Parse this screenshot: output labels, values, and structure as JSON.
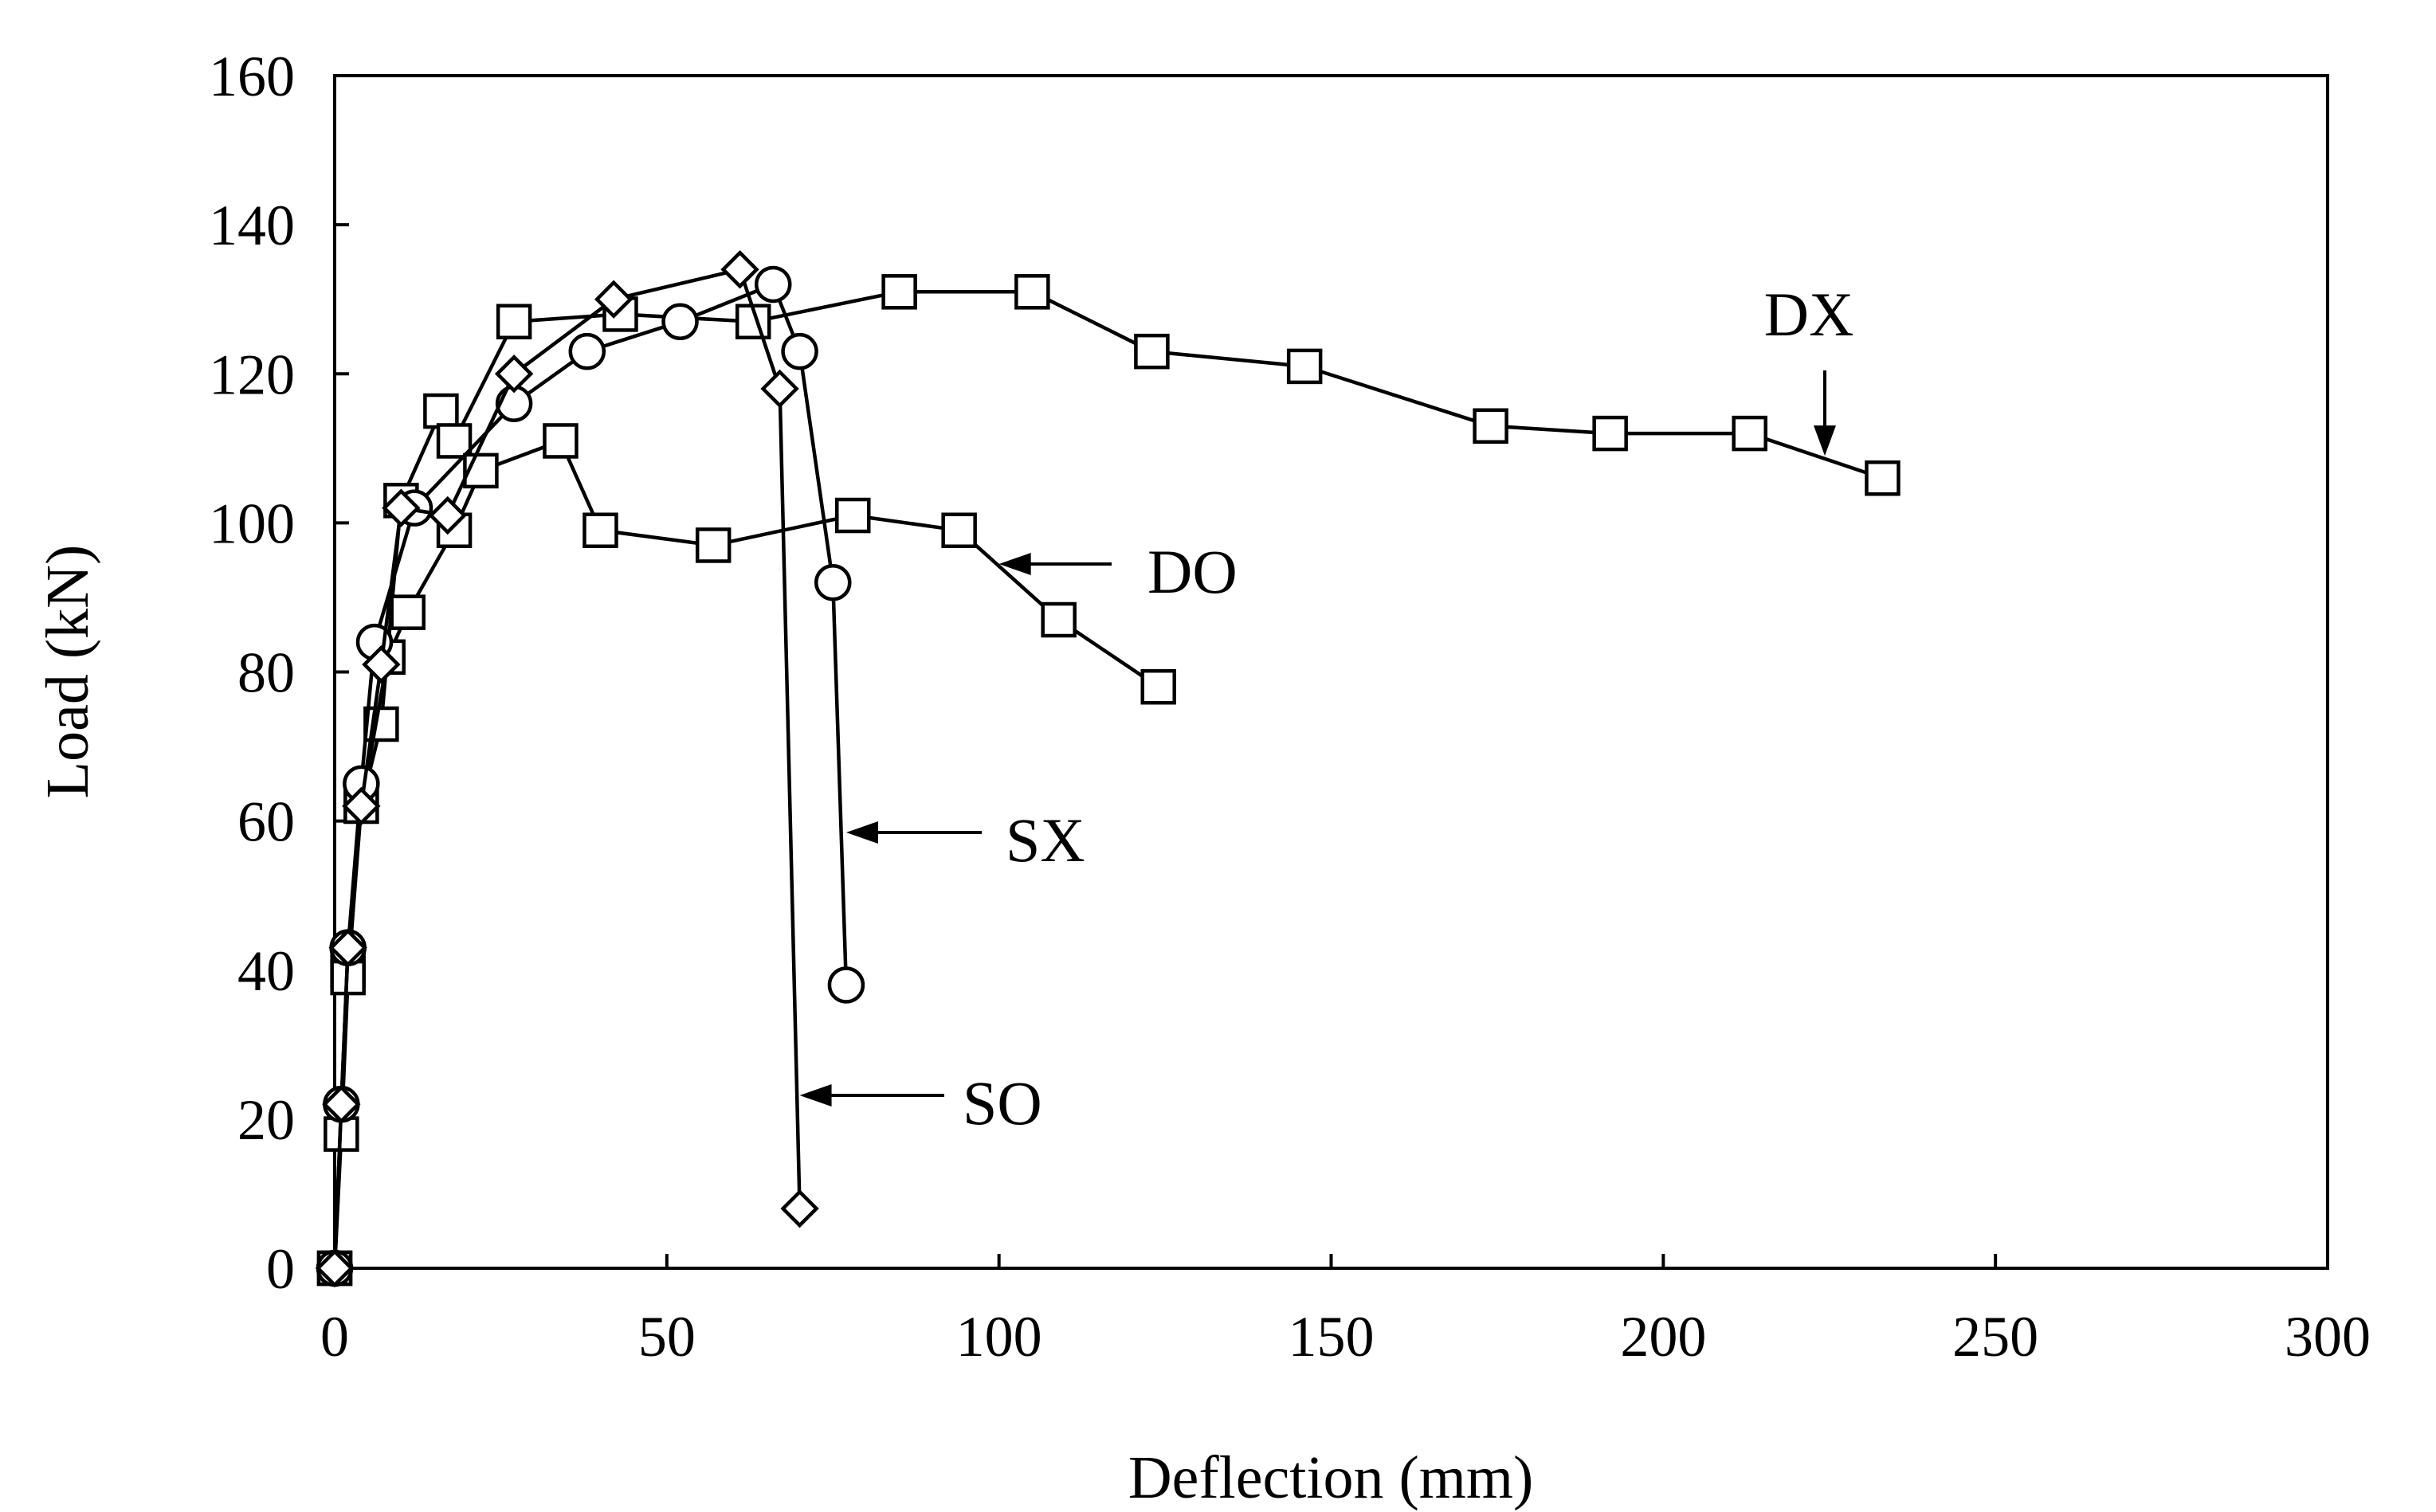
{
  "chart_data": {
    "type": "line",
    "xlabel": "Deflection (mm)",
    "ylabel": "Load (kN)",
    "xlim": [
      0,
      300
    ],
    "ylim": [
      0,
      160
    ],
    "xticks": [
      0,
      50,
      100,
      150,
      200,
      250,
      300
    ],
    "yticks": [
      0,
      20,
      40,
      60,
      80,
      100,
      120,
      140,
      160
    ],
    "grid": false,
    "series": [
      {
        "name": "DX",
        "marker": "square",
        "x": [
          0,
          2,
          4,
          7,
          10,
          16,
          18,
          27,
          43,
          63,
          85,
          105,
          123,
          146,
          174,
          192,
          213,
          233
        ],
        "y": [
          0,
          40,
          62,
          73,
          103,
          115,
          111,
          127,
          128,
          127,
          131,
          131,
          123,
          121,
          113,
          112,
          112,
          106
        ]
      },
      {
        "name": "DO",
        "marker": "square",
        "x": [
          0,
          1,
          2,
          4,
          8,
          11,
          18,
          22,
          34,
          40,
          57,
          78,
          94,
          109,
          124
        ],
        "y": [
          0,
          18,
          39,
          62,
          82,
          88,
          99,
          107,
          111,
          99,
          97,
          101,
          99,
          87,
          78
        ]
      },
      {
        "name": "SX",
        "marker": "circle",
        "x": [
          0,
          1,
          2,
          4,
          6,
          12,
          27,
          38,
          52,
          66,
          70,
          75,
          77
        ],
        "y": [
          0,
          22,
          43,
          65,
          84,
          102,
          116,
          123,
          127,
          132,
          123,
          92,
          38
        ]
      },
      {
        "name": "SO",
        "marker": "diamond",
        "x": [
          0,
          1,
          2,
          4,
          7,
          10,
          17,
          27,
          42,
          61,
          67,
          70
        ],
        "y": [
          0,
          22,
          43,
          62,
          81,
          102,
          101,
          120,
          130,
          134,
          118,
          8
        ]
      }
    ],
    "annotations": [
      {
        "label": "DX",
        "x": 224,
        "y": 109
      },
      {
        "label": "DO",
        "x": 100,
        "y": 94
      },
      {
        "label": "SX",
        "x": 77,
        "y": 58
      },
      {
        "label": "SO",
        "x": 70,
        "y": 22
      }
    ]
  }
}
